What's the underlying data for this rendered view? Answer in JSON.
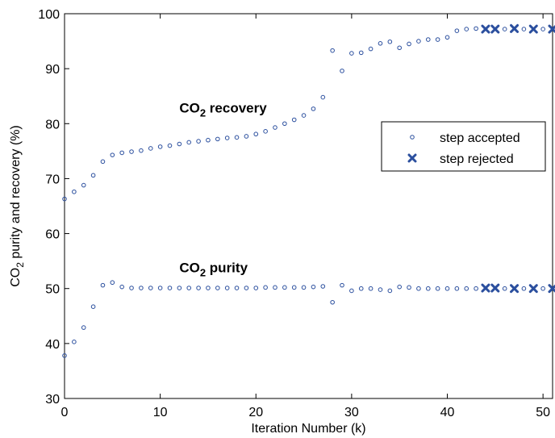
{
  "chart_data": {
    "type": "scatter",
    "xlabel": "Iteration Number (k)",
    "ylabel": {
      "pre": "CO",
      "sub": "2",
      "post": " purity and recovery (%)"
    },
    "xlim": [
      0,
      51
    ],
    "ylim": [
      30,
      100
    ],
    "xticks": [
      0,
      10,
      20,
      30,
      40,
      50
    ],
    "yticks": [
      30,
      40,
      50,
      60,
      70,
      80,
      90,
      100
    ],
    "grid": false,
    "legend_position": "right",
    "legend": [
      {
        "label": "step accepted",
        "marker": "circle"
      },
      {
        "label": "step rejected",
        "marker": "x"
      }
    ],
    "annotations": [
      {
        "pre": "CO",
        "sub": "2",
        "post": " recovery",
        "x": 12,
        "y": 82
      },
      {
        "pre": "CO",
        "sub": "2",
        "post": " purity",
        "x": 12,
        "y": 53
      }
    ],
    "color": "#2b4f9e",
    "series": [
      {
        "name": "CO2 recovery",
        "accepted": [
          [
            0,
            66.3
          ],
          [
            1,
            67.6
          ],
          [
            2,
            68.8
          ],
          [
            3,
            70.6
          ],
          [
            4,
            73.1
          ],
          [
            5,
            74.3
          ],
          [
            6,
            74.7
          ],
          [
            7,
            74.9
          ],
          [
            8,
            75.1
          ],
          [
            9,
            75.5
          ],
          [
            10,
            75.8
          ],
          [
            11,
            76.0
          ],
          [
            12,
            76.3
          ],
          [
            13,
            76.6
          ],
          [
            14,
            76.8
          ],
          [
            15,
            77.0
          ],
          [
            16,
            77.2
          ],
          [
            17,
            77.4
          ],
          [
            18,
            77.5
          ],
          [
            19,
            77.7
          ],
          [
            20,
            78.1
          ],
          [
            21,
            78.6
          ],
          [
            22,
            79.3
          ],
          [
            23,
            80.0
          ],
          [
            24,
            80.7
          ],
          [
            25,
            81.5
          ],
          [
            26,
            82.7
          ],
          [
            27,
            84.8
          ],
          [
            28,
            93.3
          ],
          [
            29,
            89.6
          ],
          [
            30,
            92.8
          ],
          [
            31,
            92.9
          ],
          [
            32,
            93.6
          ],
          [
            33,
            94.6
          ],
          [
            34,
            94.9
          ],
          [
            35,
            93.8
          ],
          [
            36,
            94.5
          ],
          [
            37,
            95.0
          ],
          [
            38,
            95.3
          ],
          [
            39,
            95.3
          ],
          [
            40,
            95.7
          ],
          [
            41,
            96.9
          ],
          [
            42,
            97.2
          ],
          [
            43,
            97.3
          ],
          [
            46,
            97.2
          ],
          [
            48,
            97.2
          ],
          [
            50,
            97.2
          ]
        ],
        "rejected": [
          [
            44,
            97.2
          ],
          [
            45,
            97.2
          ],
          [
            47,
            97.3
          ],
          [
            49,
            97.2
          ],
          [
            51,
            97.2
          ]
        ]
      },
      {
        "name": "CO2 purity",
        "accepted": [
          [
            0,
            37.8
          ],
          [
            1,
            40.3
          ],
          [
            2,
            42.9
          ],
          [
            3,
            46.7
          ],
          [
            4,
            50.6
          ],
          [
            5,
            51.1
          ],
          [
            6,
            50.3
          ],
          [
            7,
            50.1
          ],
          [
            8,
            50.1
          ],
          [
            9,
            50.1
          ],
          [
            10,
            50.1
          ],
          [
            11,
            50.1
          ],
          [
            12,
            50.1
          ],
          [
            13,
            50.1
          ],
          [
            14,
            50.1
          ],
          [
            15,
            50.1
          ],
          [
            16,
            50.1
          ],
          [
            17,
            50.1
          ],
          [
            18,
            50.1
          ],
          [
            19,
            50.1
          ],
          [
            20,
            50.1
          ],
          [
            21,
            50.2
          ],
          [
            22,
            50.2
          ],
          [
            23,
            50.2
          ],
          [
            24,
            50.2
          ],
          [
            25,
            50.2
          ],
          [
            26,
            50.3
          ],
          [
            27,
            50.4
          ],
          [
            28,
            47.5
          ],
          [
            29,
            50.6
          ],
          [
            30,
            49.6
          ],
          [
            31,
            50.0
          ],
          [
            32,
            50.0
          ],
          [
            33,
            49.8
          ],
          [
            34,
            49.6
          ],
          [
            35,
            50.3
          ],
          [
            36,
            50.2
          ],
          [
            37,
            50.0
          ],
          [
            38,
            50.0
          ],
          [
            39,
            50.0
          ],
          [
            40,
            50.0
          ],
          [
            41,
            50.0
          ],
          [
            42,
            50.0
          ],
          [
            43,
            50.0
          ],
          [
            46,
            50.0
          ],
          [
            48,
            50.0
          ],
          [
            50,
            50.0
          ]
        ],
        "rejected": [
          [
            44,
            50.1
          ],
          [
            45,
            50.1
          ],
          [
            47,
            50.0
          ],
          [
            49,
            50.0
          ],
          [
            51,
            50.0
          ]
        ]
      }
    ]
  }
}
